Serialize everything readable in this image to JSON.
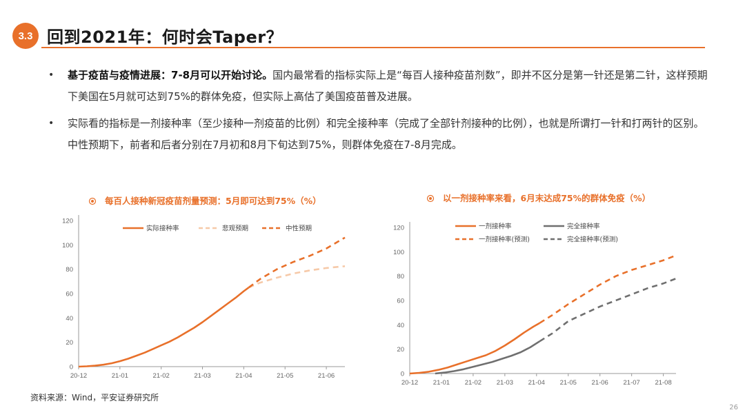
{
  "header": {
    "section_number": "3.3",
    "title": "回到2021年：何时会Taper？"
  },
  "bullets": [
    {
      "bold": "基于疫苗与疫情进展：7-8月可以开始讨论。",
      "text": "国内最常看的指标实际上是“每百人接种疫苗剂数”，即并不区分是第一针还是第二针，这样预期下美国在5月就可达到75%的群体免疫，但实际上高估了美国疫苗普及进展。"
    },
    {
      "bold": "",
      "text": "实际看的指标是一剂接种率（至少接种一剂疫苗的比例）和完全接种率（完成了全部针剂接种的比例），也就是所谓打一针和打两针的区别。中性预期下，前者和后者分别在7月初和8月下旬达到75%，则群体免疫在7-8月完成。"
    }
  ],
  "footer": {
    "source": "资料来源：Wind，平安证券研究所",
    "page": "26"
  },
  "colors": {
    "accent": "#E8702A",
    "light": "#F6C9A8",
    "dark_gray": "#6F6F6F"
  },
  "chart_data": [
    {
      "type": "line",
      "title": "每百人接种新冠疫苗剂量预测：5月即可达到75%（%）",
      "ylim": [
        0,
        120
      ],
      "yticks": [
        0,
        20,
        40,
        60,
        80,
        100,
        120
      ],
      "xticks": [
        "20-12",
        "21-01",
        "21-02",
        "21-03",
        "21-04",
        "21-05",
        "21-06"
      ],
      "x_domain": [
        0,
        6.45
      ],
      "series": [
        {
          "name": "实际接种率",
          "style": "solid",
          "color": "#E8702A",
          "points": [
            [
              0.0,
              0
            ],
            [
              0.2,
              0.3
            ],
            [
              0.4,
              0.8
            ],
            [
              0.6,
              1.6
            ],
            [
              0.8,
              2.8
            ],
            [
              1.0,
              4.5
            ],
            [
              1.2,
              6.5
            ],
            [
              1.4,
              9
            ],
            [
              1.6,
              11.5
            ],
            [
              1.8,
              14.5
            ],
            [
              2.0,
              17.5
            ],
            [
              2.2,
              20.5
            ],
            [
              2.4,
              24
            ],
            [
              2.6,
              28
            ],
            [
              2.8,
              32
            ],
            [
              3.0,
              36.5
            ],
            [
              3.2,
              41.5
            ],
            [
              3.4,
              46.5
            ],
            [
              3.6,
              51.5
            ],
            [
              3.8,
              56.5
            ],
            [
              4.0,
              62
            ],
            [
              4.12,
              65
            ]
          ]
        },
        {
          "name": "悲观预期",
          "style": "dashed",
          "color": "#F6C9A8",
          "points": [
            [
              4.12,
              65
            ],
            [
              4.4,
              69
            ],
            [
              4.8,
              73
            ],
            [
              5.2,
              76.5
            ],
            [
              5.6,
              79
            ],
            [
              6.0,
              81
            ],
            [
              6.45,
              82.5
            ]
          ]
        },
        {
          "name": "中性预期",
          "style": "dashed",
          "color": "#E8702A",
          "points": [
            [
              4.12,
              65
            ],
            [
              4.4,
              72
            ],
            [
              4.8,
              80
            ],
            [
              5.2,
              86
            ],
            [
              5.6,
              91
            ],
            [
              6.0,
              97
            ],
            [
              6.45,
              106
            ]
          ]
        }
      ]
    },
    {
      "type": "line",
      "title": "以一剂接种率来看，6月末达成75%的群体免疫（%）",
      "ylim": [
        0,
        120
      ],
      "yticks": [
        0,
        20,
        40,
        60,
        80,
        100,
        120
      ],
      "xticks": [
        "20-12",
        "21-01",
        "21-02",
        "21-03",
        "21-04",
        "21-05",
        "21-06",
        "21-07",
        "21-08"
      ],
      "x_domain": [
        0,
        8.4
      ],
      "series": [
        {
          "name": "一剂接种率",
          "style": "solid",
          "color": "#E8702A",
          "points": [
            [
              0.0,
              0
            ],
            [
              0.3,
              0.5
            ],
            [
              0.6,
              1.5
            ],
            [
              0.9,
              3
            ],
            [
              1.2,
              5
            ],
            [
              1.5,
              7.5
            ],
            [
              1.8,
              10
            ],
            [
              2.1,
              12.5
            ],
            [
              2.4,
              15
            ],
            [
              2.7,
              18.5
            ],
            [
              3.0,
              23
            ],
            [
              3.3,
              28
            ],
            [
              3.6,
              33.5
            ],
            [
              3.9,
              38.5
            ],
            [
              4.1,
              41.5
            ]
          ]
        },
        {
          "name": "完全接种率",
          "style": "solid",
          "color": "#6F6F6F",
          "points": [
            [
              0.8,
              0
            ],
            [
              1.1,
              0.8
            ],
            [
              1.4,
              2
            ],
            [
              1.7,
              3.5
            ],
            [
              2.0,
              5.5
            ],
            [
              2.3,
              7.5
            ],
            [
              2.6,
              9.5
            ],
            [
              2.9,
              12
            ],
            [
              3.2,
              14.5
            ],
            [
              3.5,
              17.5
            ],
            [
              3.8,
              21.5
            ],
            [
              4.1,
              26.5
            ]
          ]
        },
        {
          "name": "一剂接种率(预测)",
          "style": "dashed",
          "color": "#E8702A",
          "points": [
            [
              4.1,
              41.5
            ],
            [
              4.5,
              48
            ],
            [
              5.0,
              57
            ],
            [
              5.5,
              65
            ],
            [
              6.0,
              73
            ],
            [
              6.5,
              80
            ],
            [
              7.0,
              85
            ],
            [
              7.5,
              89
            ],
            [
              8.0,
              93
            ],
            [
              8.4,
              97
            ]
          ]
        },
        {
          "name": "完全接种率(预测)",
          "style": "dashed",
          "color": "#6F6F6F",
          "points": [
            [
              4.1,
              26.5
            ],
            [
              4.5,
              33
            ],
            [
              5.0,
              43
            ],
            [
              5.5,
              49
            ],
            [
              6.0,
              55
            ],
            [
              6.5,
              60
            ],
            [
              7.0,
              65
            ],
            [
              7.5,
              70
            ],
            [
              8.0,
              74
            ],
            [
              8.4,
              78
            ]
          ]
        }
      ]
    }
  ]
}
